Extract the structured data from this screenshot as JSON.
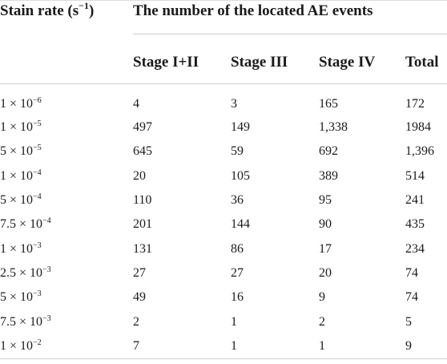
{
  "header": {
    "rate_label": "Stain rate (s",
    "rate_exp": "−1",
    "rate_close": ")",
    "group_label": "The number of the located AE events",
    "columns": [
      "Stage I+II",
      "Stage III",
      "Stage IV",
      "Total"
    ]
  },
  "rows": [
    {
      "mant": "1 × 10",
      "exp": "−6",
      "v": [
        "4",
        "3",
        "165",
        "172"
      ]
    },
    {
      "mant": "1 × 10",
      "exp": "−5",
      "v": [
        "497",
        "149",
        "1,338",
        "1984"
      ]
    },
    {
      "mant": "5 × 10",
      "exp": "−5",
      "v": [
        "645",
        "59",
        "692",
        "1,396"
      ]
    },
    {
      "mant": "1 × 10",
      "exp": "−4",
      "v": [
        "20",
        "105",
        "389",
        "514"
      ]
    },
    {
      "mant": "5 × 10",
      "exp": "−4",
      "v": [
        "110",
        "36",
        "95",
        "241"
      ]
    },
    {
      "mant": "7.5 × 10",
      "exp": "−4",
      "v": [
        "201",
        "144",
        "90",
        "435"
      ]
    },
    {
      "mant": "1 × 10",
      "exp": "−3",
      "v": [
        "131",
        "86",
        "17",
        "234"
      ]
    },
    {
      "mant": "2.5 × 10",
      "exp": "−3",
      "v": [
        "27",
        "27",
        "20",
        "74"
      ]
    },
    {
      "mant": "5 × 10",
      "exp": "−3",
      "v": [
        "49",
        "16",
        "9",
        "74"
      ]
    },
    {
      "mant": "7.5 × 10",
      "exp": "−3",
      "v": [
        "2",
        "1",
        "2",
        "5"
      ]
    },
    {
      "mant": "1 × 10",
      "exp": "−2",
      "v": [
        "7",
        "1",
        "1",
        "9"
      ]
    }
  ]
}
